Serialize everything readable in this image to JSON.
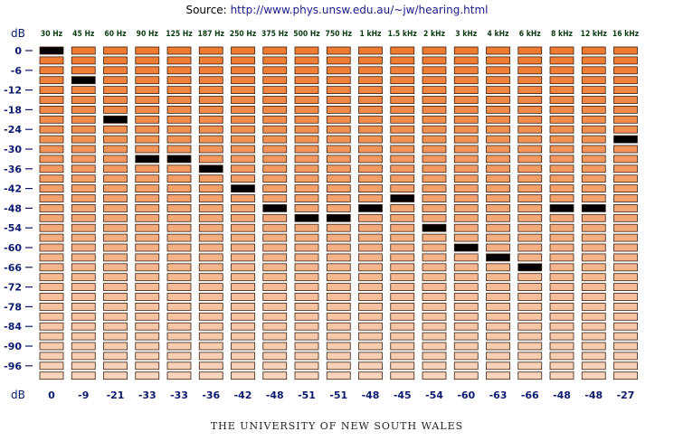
{
  "source": {
    "label": "Source:",
    "url": "http://www.phys.unsw.edu.au/~jw/hearing.html"
  },
  "footer": "THE UNIVERSITY OF NEW SOUTH WALES",
  "colors": {
    "bar_strong": "#f07a30",
    "bar_light": "#f8d4bc",
    "marker": "#000000",
    "axis_text": "#0b1a6e",
    "freq_text": "#0a3a10"
  },
  "chart_data": {
    "type": "bar",
    "ylabel": "dB",
    "xlabel": "dB",
    "ylim": [
      0,
      -99
    ],
    "yticks": [
      0,
      -6,
      -12,
      -18,
      -24,
      -30,
      -36,
      -42,
      -48,
      -54,
      -60,
      -66,
      -72,
      -78,
      -84,
      -90,
      -96
    ],
    "categories": [
      "30 Hz",
      "45 Hz",
      "60 Hz",
      "90 Hz",
      "125 Hz",
      "187 Hz",
      "250 Hz",
      "375 Hz",
      "500 Hz",
      "750 Hz",
      "1 kHz",
      "1.5 kHz",
      "2 kHz",
      "3 kHz",
      "4 kHz",
      "6 kHz",
      "8 kHz",
      "12 kHz",
      "16 kHz"
    ],
    "series": [
      {
        "values": [
          0,
          -9,
          -21,
          -33,
          -33,
          -36,
          -42,
          -48,
          -51,
          -51,
          -48,
          -45,
          -54,
          -60,
          -63,
          -66,
          -48,
          -48,
          -27
        ]
      }
    ],
    "bottom_labels": [
      "0",
      "-9",
      "-21",
      "-33",
      "-33",
      "-36",
      "-42",
      "-48",
      "-51",
      "-51",
      "-48",
      "-45",
      "-54",
      "-60",
      "-63",
      "-66",
      "-48",
      "-48",
      "-27"
    ],
    "step_db": 3,
    "grid": false
  }
}
